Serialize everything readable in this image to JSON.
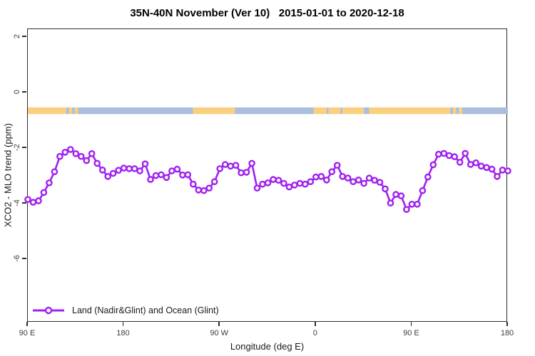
{
  "header": {
    "title": "35N-40N November (Ver 10)   2015-01-01 to 2020-12-18"
  },
  "legend": {
    "label": "Land (Nadir&Glint) and Ocean (Glint)"
  },
  "colors": {
    "line": "#A020F0",
    "marker_fill": "#ffffff",
    "land_band": "#FAD07E",
    "ocean_band": "#A9BFDB",
    "axis": "#2e2e2e"
  },
  "chart_data": {
    "type": "line",
    "title": "35N-40N November (Ver 10)   2015-01-01 to 2020-12-18",
    "xlabel": "Longitude (deg E)",
    "ylabel": "XCO2 - MLO trend (ppm)",
    "xlim_deg": [
      90,
      540
    ],
    "ylim": [
      -8.3,
      2.3
    ],
    "grid": false,
    "legend_position": "bottom-left",
    "x_ticks": [
      {
        "deg": 90,
        "label": "90 E"
      },
      {
        "deg": 180,
        "label": "180"
      },
      {
        "deg": 270,
        "label": "90 W"
      },
      {
        "deg": 360,
        "label": "0"
      },
      {
        "deg": 450,
        "label": "90 E"
      },
      {
        "deg": 540,
        "label": "180"
      }
    ],
    "y_ticks": [
      {
        "value": 2,
        "label": "2"
      },
      {
        "value": 0,
        "label": "0"
      },
      {
        "value": -2,
        "label": "-2"
      },
      {
        "value": -4,
        "label": "-4"
      },
      {
        "value": -6,
        "label": "-6"
      }
    ],
    "x_start_deg": 90,
    "x_step_deg": 5,
    "series": [
      {
        "name": "Land (Nadir&Glint) and Ocean (Glint)",
        "color": "#A020F0",
        "marker": "open-circle",
        "values": [
          -3.85,
          -3.95,
          -3.9,
          -3.6,
          -3.25,
          -2.85,
          -2.3,
          -2.15,
          -2.05,
          -2.2,
          -2.3,
          -2.45,
          -2.2,
          -2.55,
          -2.79,
          -3.02,
          -2.91,
          -2.8,
          -2.72,
          -2.74,
          -2.74,
          -2.82,
          -2.57,
          -3.13,
          -2.99,
          -2.96,
          -3.06,
          -2.82,
          -2.76,
          -2.97,
          -2.96,
          -3.3,
          -3.51,
          -3.53,
          -3.44,
          -3.21,
          -2.74,
          -2.59,
          -2.65,
          -2.62,
          -2.89,
          -2.87,
          -2.55,
          -3.44,
          -3.3,
          -3.25,
          -3.13,
          -3.16,
          -3.27,
          -3.4,
          -3.33,
          -3.27,
          -3.3,
          -3.21,
          -3.04,
          -3.02,
          -3.15,
          -2.85,
          -2.62,
          -3.02,
          -3.08,
          -3.21,
          -3.15,
          -3.27,
          -3.08,
          -3.16,
          -3.23,
          -3.47,
          -3.98,
          -3.67,
          -3.72,
          -4.21,
          -4.02,
          -4.02,
          -3.53,
          -3.04,
          -2.6,
          -2.22,
          -2.19,
          -2.27,
          -2.31,
          -2.51,
          -2.19,
          -2.59,
          -2.53,
          -2.65,
          -2.7,
          -2.76,
          -3.02,
          -2.79,
          -2.82
        ]
      }
    ],
    "surface_band": {
      "description": "land/ocean strip drawn across plot",
      "center_ppm": -0.655,
      "height_ppm": 0.24,
      "land_color": "#FAD07E",
      "ocean_color": "#A9BFDB",
      "segments": [
        {
          "from": 90,
          "to": 126,
          "type": "land"
        },
        {
          "from": 126,
          "to": 128.5,
          "type": "ocean"
        },
        {
          "from": 128.5,
          "to": 131.5,
          "type": "land"
        },
        {
          "from": 131.5,
          "to": 134,
          "type": "ocean"
        },
        {
          "from": 134,
          "to": 137,
          "type": "land"
        },
        {
          "from": 137,
          "to": 245,
          "type": "ocean"
        },
        {
          "from": 245,
          "to": 284,
          "type": "land"
        },
        {
          "from": 284,
          "to": 358,
          "type": "ocean"
        },
        {
          "from": 358,
          "to": 370,
          "type": "land"
        },
        {
          "from": 370,
          "to": 372,
          "type": "ocean"
        },
        {
          "from": 372,
          "to": 383,
          "type": "land"
        },
        {
          "from": 383,
          "to": 385,
          "type": "ocean"
        },
        {
          "from": 385,
          "to": 405,
          "type": "land"
        },
        {
          "from": 405,
          "to": 410,
          "type": "ocean"
        },
        {
          "from": 410,
          "to": 486,
          "type": "land"
        },
        {
          "from": 486,
          "to": 488.5,
          "type": "ocean"
        },
        {
          "from": 488.5,
          "to": 491.5,
          "type": "land"
        },
        {
          "from": 491.5,
          "to": 494,
          "type": "ocean"
        },
        {
          "from": 494,
          "to": 497,
          "type": "land"
        },
        {
          "from": 497,
          "to": 540,
          "type": "ocean"
        }
      ]
    }
  }
}
